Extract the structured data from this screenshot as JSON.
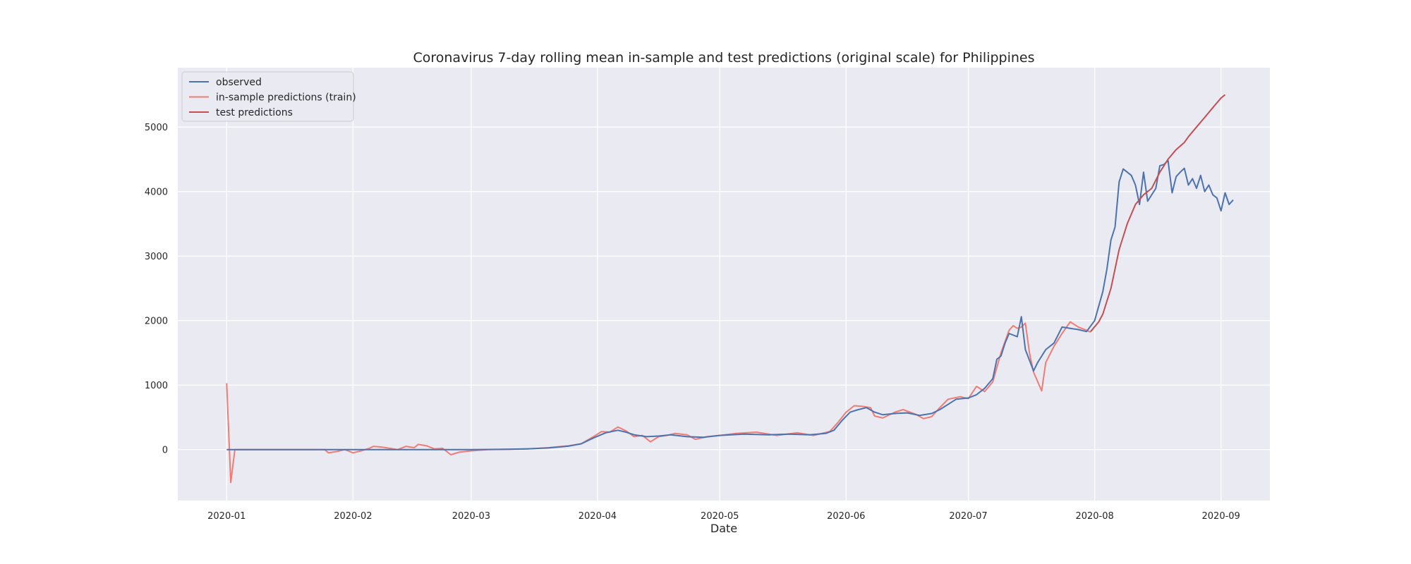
{
  "chart_data": {
    "type": "line",
    "title": "Coronavirus 7-day rolling mean in-sample and test predictions (original scale) for Philippines",
    "xlabel": "Date",
    "ylabel": "",
    "xlim": [
      "2019-12-20",
      "2020-09-13"
    ],
    "ylim": [
      -790,
      5920
    ],
    "x_ticks": [
      "2020-01",
      "2020-02",
      "2020-03",
      "2020-04",
      "2020-05",
      "2020-06",
      "2020-07",
      "2020-08",
      "2020-09"
    ],
    "x_tick_dates": [
      "2020-01-01",
      "2020-02-01",
      "2020-03-01",
      "2020-04-01",
      "2020-05-01",
      "2020-06-01",
      "2020-07-01",
      "2020-08-01",
      "2020-09-01"
    ],
    "y_ticks": [
      0,
      1000,
      2000,
      3000,
      4000,
      5000
    ],
    "grid": true,
    "legend_position": "top-left",
    "colors": {
      "background": "#eaeaf2",
      "grid": "#ffffff",
      "observed": "#4c72b0",
      "train": "#f07c74",
      "test": "#c44e52"
    },
    "series": [
      {
        "name": "observed",
        "color": "#4c72b0",
        "points": [
          [
            "2020-01-01",
            0
          ],
          [
            "2020-01-25",
            0
          ],
          [
            "2020-02-15",
            0
          ],
          [
            "2020-03-01",
            0
          ],
          [
            "2020-03-10",
            5
          ],
          [
            "2020-03-15",
            12
          ],
          [
            "2020-03-20",
            25
          ],
          [
            "2020-03-25",
            55
          ],
          [
            "2020-03-28",
            90
          ],
          [
            "2020-03-31",
            180
          ],
          [
            "2020-04-03",
            260
          ],
          [
            "2020-04-06",
            300
          ],
          [
            "2020-04-08",
            270
          ],
          [
            "2020-04-10",
            230
          ],
          [
            "2020-04-13",
            200
          ],
          [
            "2020-04-16",
            210
          ],
          [
            "2020-04-19",
            230
          ],
          [
            "2020-04-23",
            200
          ],
          [
            "2020-04-27",
            190
          ],
          [
            "2020-05-01",
            220
          ],
          [
            "2020-05-07",
            240
          ],
          [
            "2020-05-13",
            230
          ],
          [
            "2020-05-18",
            240
          ],
          [
            "2020-05-23",
            230
          ],
          [
            "2020-05-27",
            250
          ],
          [
            "2020-05-29",
            300
          ],
          [
            "2020-05-31",
            450
          ],
          [
            "2020-06-02",
            580
          ],
          [
            "2020-06-04",
            620
          ],
          [
            "2020-06-06",
            650
          ],
          [
            "2020-06-08",
            580
          ],
          [
            "2020-06-10",
            540
          ],
          [
            "2020-06-13",
            560
          ],
          [
            "2020-06-16",
            570
          ],
          [
            "2020-06-19",
            530
          ],
          [
            "2020-06-22",
            560
          ],
          [
            "2020-06-24",
            620
          ],
          [
            "2020-06-26",
            700
          ],
          [
            "2020-06-28",
            780
          ],
          [
            "2020-07-01",
            800
          ],
          [
            "2020-07-03",
            850
          ],
          [
            "2020-07-05",
            950
          ],
          [
            "2020-07-07",
            1100
          ],
          [
            "2020-07-08",
            1400
          ],
          [
            "2020-07-09",
            1450
          ],
          [
            "2020-07-10",
            1650
          ],
          [
            "2020-07-11",
            1800
          ],
          [
            "2020-07-13",
            1750
          ],
          [
            "2020-07-14",
            2060
          ],
          [
            "2020-07-15",
            1550
          ],
          [
            "2020-07-17",
            1220
          ],
          [
            "2020-07-18",
            1350
          ],
          [
            "2020-07-20",
            1550
          ],
          [
            "2020-07-22",
            1650
          ],
          [
            "2020-07-24",
            1900
          ],
          [
            "2020-07-26",
            1880
          ],
          [
            "2020-07-28",
            1860
          ],
          [
            "2020-07-30",
            1830
          ],
          [
            "2020-08-01",
            2000
          ],
          [
            "2020-08-03",
            2450
          ],
          [
            "2020-08-04",
            2800
          ],
          [
            "2020-08-05",
            3250
          ],
          [
            "2020-08-06",
            3450
          ],
          [
            "2020-08-07",
            4150
          ],
          [
            "2020-08-08",
            4350
          ],
          [
            "2020-08-10",
            4250
          ],
          [
            "2020-08-11",
            4100
          ],
          [
            "2020-08-12",
            3800
          ],
          [
            "2020-08-13",
            4300
          ],
          [
            "2020-08-14",
            3850
          ],
          [
            "2020-08-16",
            4050
          ],
          [
            "2020-08-17",
            4400
          ],
          [
            "2020-08-18",
            4420
          ],
          [
            "2020-08-19",
            4480
          ],
          [
            "2020-08-20",
            3980
          ],
          [
            "2020-08-21",
            4230
          ],
          [
            "2020-08-22",
            4300
          ],
          [
            "2020-08-23",
            4360
          ],
          [
            "2020-08-24",
            4100
          ],
          [
            "2020-08-25",
            4200
          ],
          [
            "2020-08-26",
            4050
          ],
          [
            "2020-08-27",
            4250
          ],
          [
            "2020-08-28",
            4000
          ],
          [
            "2020-08-29",
            4100
          ],
          [
            "2020-08-30",
            3950
          ],
          [
            "2020-08-31",
            3900
          ],
          [
            "2020-09-01",
            3700
          ],
          [
            "2020-09-02",
            3980
          ],
          [
            "2020-09-03",
            3800
          ],
          [
            "2020-09-04",
            3870
          ]
        ]
      },
      {
        "name": "in-sample predictions (train)",
        "color": "#f07c74",
        "points": [
          [
            "2020-01-01",
            1030
          ],
          [
            "2020-01-02",
            -510
          ],
          [
            "2020-01-03",
            0
          ],
          [
            "2020-01-07",
            0
          ],
          [
            "2020-01-25",
            0
          ],
          [
            "2020-01-26",
            -50
          ],
          [
            "2020-01-28",
            -30
          ],
          [
            "2020-01-30",
            0
          ],
          [
            "2020-02-01",
            -50
          ],
          [
            "2020-02-03",
            -20
          ],
          [
            "2020-02-05",
            20
          ],
          [
            "2020-02-06",
            50
          ],
          [
            "2020-02-08",
            40
          ],
          [
            "2020-02-10",
            20
          ],
          [
            "2020-02-12",
            0
          ],
          [
            "2020-02-14",
            50
          ],
          [
            "2020-02-16",
            30
          ],
          [
            "2020-02-17",
            80
          ],
          [
            "2020-02-19",
            60
          ],
          [
            "2020-02-21",
            10
          ],
          [
            "2020-02-23",
            20
          ],
          [
            "2020-02-25",
            -80
          ],
          [
            "2020-02-27",
            -40
          ],
          [
            "2020-03-01",
            -20
          ],
          [
            "2020-03-05",
            0
          ],
          [
            "2020-03-15",
            10
          ],
          [
            "2020-03-20",
            30
          ],
          [
            "2020-03-25",
            60
          ],
          [
            "2020-03-28",
            90
          ],
          [
            "2020-03-31",
            200
          ],
          [
            "2020-04-02",
            280
          ],
          [
            "2020-04-04",
            270
          ],
          [
            "2020-04-06",
            350
          ],
          [
            "2020-04-08",
            290
          ],
          [
            "2020-04-10",
            200
          ],
          [
            "2020-04-12",
            220
          ],
          [
            "2020-04-14",
            120
          ],
          [
            "2020-04-16",
            200
          ],
          [
            "2020-04-18",
            220
          ],
          [
            "2020-04-20",
            250
          ],
          [
            "2020-04-23",
            230
          ],
          [
            "2020-04-25",
            160
          ],
          [
            "2020-04-28",
            200
          ],
          [
            "2020-05-01",
            220
          ],
          [
            "2020-05-05",
            250
          ],
          [
            "2020-05-10",
            270
          ],
          [
            "2020-05-15",
            220
          ],
          [
            "2020-05-20",
            260
          ],
          [
            "2020-05-24",
            220
          ],
          [
            "2020-05-28",
            280
          ],
          [
            "2020-05-30",
            420
          ],
          [
            "2020-06-01",
            580
          ],
          [
            "2020-06-03",
            680
          ],
          [
            "2020-06-05",
            670
          ],
          [
            "2020-06-07",
            650
          ],
          [
            "2020-06-08",
            520
          ],
          [
            "2020-06-10",
            490
          ],
          [
            "2020-06-13",
            580
          ],
          [
            "2020-06-15",
            620
          ],
          [
            "2020-06-18",
            550
          ],
          [
            "2020-06-20",
            480
          ],
          [
            "2020-06-22",
            510
          ],
          [
            "2020-06-24",
            650
          ],
          [
            "2020-06-26",
            780
          ],
          [
            "2020-06-29",
            820
          ],
          [
            "2020-07-01",
            790
          ],
          [
            "2020-07-03",
            980
          ],
          [
            "2020-07-05",
            900
          ],
          [
            "2020-07-07",
            1050
          ],
          [
            "2020-07-09",
            1500
          ],
          [
            "2020-07-11",
            1850
          ],
          [
            "2020-07-12",
            1920
          ],
          [
            "2020-07-13",
            1880
          ],
          [
            "2020-07-14",
            1900
          ],
          [
            "2020-07-15",
            1960
          ],
          [
            "2020-07-16",
            1500
          ],
          [
            "2020-07-17",
            1200
          ],
          [
            "2020-07-19",
            910
          ],
          [
            "2020-07-20",
            1350
          ],
          [
            "2020-07-22",
            1600
          ],
          [
            "2020-07-24",
            1800
          ],
          [
            "2020-07-26",
            1980
          ],
          [
            "2020-07-28",
            1900
          ],
          [
            "2020-07-30",
            1850
          ],
          [
            "2020-07-31",
            1820
          ]
        ]
      },
      {
        "name": "test predictions",
        "color": "#c44e52",
        "points": [
          [
            "2020-07-31",
            1830
          ],
          [
            "2020-08-02",
            1980
          ],
          [
            "2020-08-03",
            2100
          ],
          [
            "2020-08-05",
            2500
          ],
          [
            "2020-08-07",
            3100
          ],
          [
            "2020-08-09",
            3500
          ],
          [
            "2020-08-11",
            3800
          ],
          [
            "2020-08-13",
            3950
          ],
          [
            "2020-08-15",
            4050
          ],
          [
            "2020-08-17",
            4300
          ],
          [
            "2020-08-19",
            4500
          ],
          [
            "2020-08-21",
            4650
          ],
          [
            "2020-08-23",
            4760
          ],
          [
            "2020-08-24",
            4850
          ],
          [
            "2020-08-26",
            5000
          ],
          [
            "2020-08-28",
            5150
          ],
          [
            "2020-08-30",
            5300
          ],
          [
            "2020-09-01",
            5450
          ],
          [
            "2020-09-02",
            5500
          ]
        ]
      }
    ]
  }
}
